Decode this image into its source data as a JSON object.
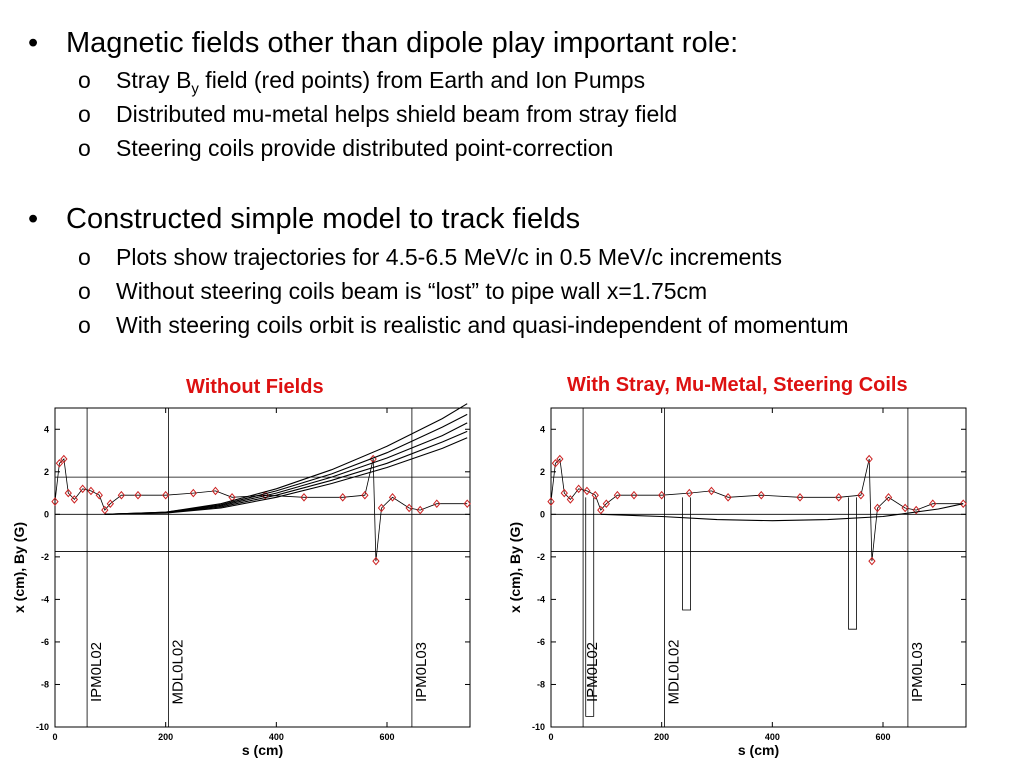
{
  "bullets": [
    {
      "marker": "•",
      "text": "Magnetic fields other than dipole play important role:",
      "subs": [
        {
          "marker": "o",
          "pre": "Stray B",
          "sub": "y",
          "post": " field (red points) from Earth and Ion Pumps"
        },
        {
          "marker": "o",
          "pre": "Distributed mu-metal helps shield beam from stray field",
          "sub": "",
          "post": ""
        },
        {
          "marker": "o",
          "pre": "Steering coils provide distributed point-correction",
          "sub": "",
          "post": ""
        }
      ]
    },
    {
      "marker": "•",
      "text": "Constructed simple model to track fields",
      "subs": [
        {
          "marker": "o",
          "pre": "Plots show trajectories for 4.5-6.5 MeV/c in 0.5 MeV/c increments",
          "sub": "",
          "post": ""
        },
        {
          "marker": "o",
          "pre": "Without steering coils beam is “lost” to pipe wall x=1.75cm",
          "sub": "",
          "post": ""
        },
        {
          "marker": "o",
          "pre": "With steering coils orbit is realistic and quasi-independent of momentum",
          "sub": "",
          "post": ""
        }
      ]
    }
  ],
  "colors": {
    "title_red": "#dd1111",
    "field_points": "#cc2222",
    "trajectory": "#000000"
  },
  "chart_data": [
    {
      "type": "line",
      "title": "Without Fields",
      "xlabel": "s (cm)",
      "ylabel": "x (cm), By (G)",
      "xlim": [
        0,
        750
      ],
      "ylim": [
        -10,
        5
      ],
      "xticks": [
        0,
        200,
        400,
        600
      ],
      "yticks": [
        -10,
        -8,
        -6,
        -4,
        -2,
        0,
        2,
        4
      ],
      "hlines": [
        1.75,
        -1.75,
        0
      ],
      "vlines": [
        {
          "x": 58,
          "label": "IPM0L02"
        },
        {
          "x": 205,
          "label": "MDL0L02"
        },
        {
          "x": 645,
          "label": "IPM0L03"
        }
      ],
      "series": [
        {
          "points": [
            [
              0,
              0.6
            ],
            [
              8,
              2.4
            ],
            [
              16,
              2.6
            ],
            [
              24,
              1.0
            ],
            [
              35,
              0.7
            ],
            [
              50,
              1.2
            ],
            [
              65,
              1.1
            ],
            [
              80,
              0.9
            ],
            [
              90,
              0.2
            ],
            [
              100,
              0.5
            ],
            [
              120,
              0.9
            ],
            [
              150,
              0.9
            ],
            [
              200,
              0.9
            ],
            [
              250,
              1.0
            ],
            [
              290,
              1.1
            ],
            [
              320,
              0.8
            ],
            [
              380,
              0.9
            ],
            [
              450,
              0.8
            ],
            [
              520,
              0.8
            ],
            [
              560,
              0.9
            ],
            [
              575,
              2.6
            ],
            [
              580,
              -2.2
            ],
            [
              590,
              0.3
            ],
            [
              610,
              0.8
            ],
            [
              640,
              0.3
            ],
            [
              660,
              0.2
            ],
            [
              690,
              0.5
            ],
            [
              745,
              0.5
            ]
          ]
        },
        {
          "points": [
            [
              90,
              0
            ],
            [
              200,
              0.1
            ],
            [
              300,
              0.5
            ],
            [
              400,
              1.2
            ],
            [
              500,
              2.1
            ],
            [
              600,
              3.2
            ],
            [
              700,
              4.5
            ],
            [
              745,
              5.2
            ]
          ]
        },
        {
          "points": [
            [
              90,
              0
            ],
            [
              200,
              0.1
            ],
            [
              300,
              0.45
            ],
            [
              400,
              1.1
            ],
            [
              500,
              1.9
            ],
            [
              600,
              2.9
            ],
            [
              700,
              4.1
            ],
            [
              745,
              4.7
            ]
          ]
        },
        {
          "points": [
            [
              90,
              0
            ],
            [
              200,
              0.08
            ],
            [
              300,
              0.4
            ],
            [
              400,
              1.0
            ],
            [
              500,
              1.75
            ],
            [
              600,
              2.65
            ],
            [
              700,
              3.7
            ],
            [
              745,
              4.3
            ]
          ]
        },
        {
          "points": [
            [
              90,
              0
            ],
            [
              200,
              0.07
            ],
            [
              300,
              0.35
            ],
            [
              400,
              0.9
            ],
            [
              500,
              1.6
            ],
            [
              600,
              2.4
            ],
            [
              700,
              3.4
            ],
            [
              745,
              3.9
            ]
          ]
        },
        {
          "points": [
            [
              90,
              0
            ],
            [
              200,
              0.06
            ],
            [
              300,
              0.3
            ],
            [
              400,
              0.8
            ],
            [
              500,
              1.45
            ],
            [
              600,
              2.2
            ],
            [
              700,
              3.1
            ],
            [
              745,
              3.6
            ]
          ]
        }
      ]
    },
    {
      "type": "line",
      "title": "With Stray, Mu-Metal, Steering Coils",
      "xlabel": "s (cm)",
      "ylabel": "x (cm), By (G)",
      "xlim": [
        0,
        750
      ],
      "ylim": [
        -10,
        5
      ],
      "xticks": [
        0,
        200,
        400,
        600
      ],
      "yticks": [
        -10,
        -8,
        -6,
        -4,
        -2,
        0,
        2,
        4
      ],
      "hlines": [
        1.75,
        -1.75,
        0
      ],
      "vlines": [
        {
          "x": 58,
          "label": "IPM0L02"
        },
        {
          "x": 205,
          "label": "MDL0L02"
        },
        {
          "x": 645,
          "label": "IPM0L03"
        }
      ],
      "series": [
        {
          "points": [
            [
              0,
              0.6
            ],
            [
              8,
              2.4
            ],
            [
              16,
              2.6
            ],
            [
              24,
              1.0
            ],
            [
              35,
              0.7
            ],
            [
              50,
              1.2
            ],
            [
              65,
              1.1
            ],
            [
              80,
              0.9
            ],
            [
              90,
              0.2
            ],
            [
              100,
              0.5
            ],
            [
              120,
              0.9
            ],
            [
              150,
              0.9
            ],
            [
              200,
              0.9
            ],
            [
              250,
              1.0
            ],
            [
              290,
              1.1
            ],
            [
              320,
              0.8
            ],
            [
              380,
              0.9
            ],
            [
              450,
              0.8
            ],
            [
              520,
              0.8
            ],
            [
              560,
              0.9
            ],
            [
              575,
              2.6
            ],
            [
              580,
              -2.2
            ],
            [
              590,
              0.3
            ],
            [
              610,
              0.8
            ],
            [
              640,
              0.3
            ],
            [
              660,
              0.2
            ],
            [
              690,
              0.5
            ],
            [
              745,
              0.5
            ]
          ]
        },
        {
          "points": [
            [
              90,
              0
            ],
            [
              200,
              -0.1
            ],
            [
              300,
              -0.25
            ],
            [
              400,
              -0.3
            ],
            [
              500,
              -0.25
            ],
            [
              600,
              -0.1
            ],
            [
              700,
              0.25
            ],
            [
              745,
              0.5
            ]
          ]
        }
      ],
      "spikes": [
        [
          70,
          -9.5
        ],
        [
          245,
          -4.5
        ],
        [
          545,
          -5.4
        ]
      ]
    }
  ]
}
